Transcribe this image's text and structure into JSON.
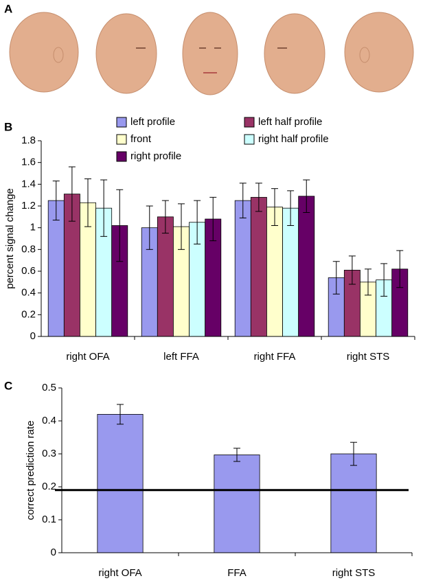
{
  "panel_labels": [
    "A",
    "B",
    "C"
  ],
  "chart_data": [
    {
      "type": "bar",
      "ylabel": "percent signal change",
      "categories": [
        "right OFA",
        "left FFA",
        "right FFA",
        "right STS"
      ],
      "series": [
        {
          "name": "left profile",
          "color": "#9999ee",
          "values": [
            1.25,
            1.0,
            1.25,
            0.54
          ],
          "errors": [
            0.18,
            0.2,
            0.16,
            0.15
          ]
        },
        {
          "name": "left half profile",
          "color": "#993366",
          "values": [
            1.31,
            1.1,
            1.28,
            0.61
          ],
          "errors": [
            0.25,
            0.15,
            0.13,
            0.13
          ]
        },
        {
          "name": "front",
          "color": "#ffffcc",
          "values": [
            1.23,
            1.01,
            1.19,
            0.5
          ],
          "errors": [
            0.22,
            0.21,
            0.17,
            0.12
          ]
        },
        {
          "name": "right half profile",
          "color": "#ccffff",
          "values": [
            1.18,
            1.05,
            1.18,
            0.52
          ],
          "errors": [
            0.26,
            0.2,
            0.16,
            0.15
          ]
        },
        {
          "name": "right profile",
          "color": "#660066",
          "values": [
            1.02,
            1.08,
            1.29,
            0.62
          ],
          "errors": [
            0.33,
            0.2,
            0.15,
            0.17
          ]
        }
      ],
      "ylim": [
        0,
        1.8
      ],
      "yticks": [
        0,
        0.2,
        0.4,
        0.6,
        0.8,
        1,
        1.2,
        1.4,
        1.6,
        1.8
      ],
      "legend": "top"
    },
    {
      "type": "bar",
      "ylabel": "correct prediction rate",
      "categories": [
        "right OFA",
        "FFA",
        "right STS"
      ],
      "values": [
        0.42,
        0.297,
        0.3
      ],
      "errors": [
        0.03,
        0.02,
        0.035
      ],
      "color": "#9999ee",
      "reference_line": 0.19,
      "ylim": [
        0,
        0.5
      ],
      "yticks": [
        0,
        0.1,
        0.2,
        0.3,
        0.4,
        0.5
      ]
    }
  ]
}
